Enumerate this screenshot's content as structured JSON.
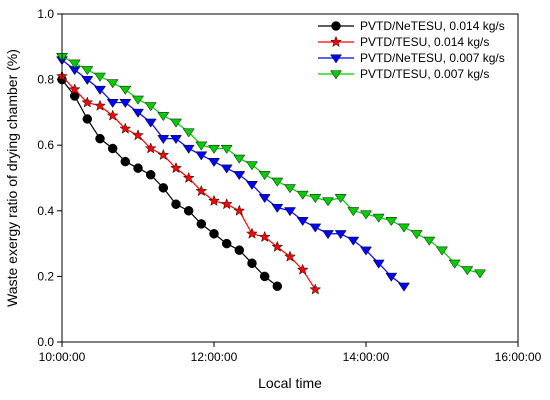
{
  "chart_data": {
    "type": "line",
    "xlabel": "Local time",
    "ylabel": "Waste exergy ratio of drying chamber (%)",
    "xlim": [
      10.0,
      16.0
    ],
    "ylim": [
      0.0,
      1.0
    ],
    "x_ticks": [
      10,
      12,
      14,
      16
    ],
    "x_tick_labels": [
      "10:00:00",
      "12:00:00",
      "14:00:00",
      "16:00:00"
    ],
    "y_ticks": [
      0.0,
      0.2,
      0.4,
      0.6,
      0.8,
      1.0
    ],
    "y_tick_labels": [
      "0.0",
      "0.2",
      "0.4",
      "0.6",
      "0.8",
      "1.0"
    ],
    "legend_position": "top-right",
    "grid": false,
    "series": [
      {
        "name": "PVTD/NeTESU, 0.014 kg/s",
        "color": "#000000",
        "marker": "circle",
        "x": [
          10.0,
          10.167,
          10.333,
          10.5,
          10.667,
          10.833,
          11.0,
          11.167,
          11.333,
          11.5,
          11.667,
          11.833,
          12.0,
          12.167,
          12.333,
          12.5,
          12.667,
          12.833
        ],
        "y": [
          0.8,
          0.75,
          0.68,
          0.62,
          0.59,
          0.55,
          0.53,
          0.51,
          0.47,
          0.42,
          0.4,
          0.36,
          0.33,
          0.3,
          0.28,
          0.24,
          0.2,
          0.17
        ]
      },
      {
        "name": "PVTD/TESU, 0.014 kg/s",
        "color": "#ff0000",
        "marker": "star",
        "x": [
          10.0,
          10.167,
          10.333,
          10.5,
          10.667,
          10.833,
          11.0,
          11.167,
          11.333,
          11.5,
          11.667,
          11.833,
          12.0,
          12.167,
          12.333,
          12.5,
          12.667,
          12.833,
          13.0,
          13.167,
          13.333
        ],
        "y": [
          0.81,
          0.77,
          0.73,
          0.72,
          0.69,
          0.65,
          0.63,
          0.59,
          0.57,
          0.53,
          0.5,
          0.46,
          0.43,
          0.42,
          0.4,
          0.33,
          0.32,
          0.29,
          0.26,
          0.22,
          0.16
        ]
      },
      {
        "name": "PVTD/NeTESU, 0.007 kg/s",
        "color": "#0000ff",
        "marker": "triangle-down",
        "x": [
          10.0,
          10.167,
          10.333,
          10.5,
          10.667,
          10.833,
          11.0,
          11.167,
          11.333,
          11.5,
          11.667,
          11.833,
          12.0,
          12.167,
          12.333,
          12.5,
          12.667,
          12.833,
          13.0,
          13.167,
          13.333,
          13.5,
          13.667,
          13.833,
          14.0,
          14.167,
          14.333,
          14.5
        ],
        "y": [
          0.86,
          0.83,
          0.8,
          0.77,
          0.73,
          0.73,
          0.7,
          0.67,
          0.62,
          0.62,
          0.59,
          0.57,
          0.55,
          0.53,
          0.51,
          0.48,
          0.44,
          0.41,
          0.4,
          0.37,
          0.35,
          0.33,
          0.33,
          0.31,
          0.28,
          0.24,
          0.2,
          0.17
        ]
      },
      {
        "name": "PVTD/TESU, 0.007 kg/s",
        "color": "#00cc00",
        "marker": "triangle-down",
        "x": [
          10.0,
          10.167,
          10.333,
          10.5,
          10.667,
          10.833,
          11.0,
          11.167,
          11.333,
          11.5,
          11.667,
          11.833,
          12.0,
          12.167,
          12.333,
          12.5,
          12.667,
          12.833,
          13.0,
          13.167,
          13.333,
          13.5,
          13.667,
          13.833,
          14.0,
          14.167,
          14.333,
          14.5,
          14.667,
          14.833,
          15.0,
          15.167,
          15.333,
          15.5
        ],
        "y": [
          0.87,
          0.85,
          0.83,
          0.81,
          0.79,
          0.77,
          0.74,
          0.72,
          0.69,
          0.67,
          0.64,
          0.6,
          0.59,
          0.59,
          0.56,
          0.54,
          0.51,
          0.49,
          0.47,
          0.45,
          0.44,
          0.43,
          0.44,
          0.4,
          0.39,
          0.38,
          0.37,
          0.35,
          0.33,
          0.31,
          0.28,
          0.24,
          0.22,
          0.21
        ]
      }
    ]
  }
}
